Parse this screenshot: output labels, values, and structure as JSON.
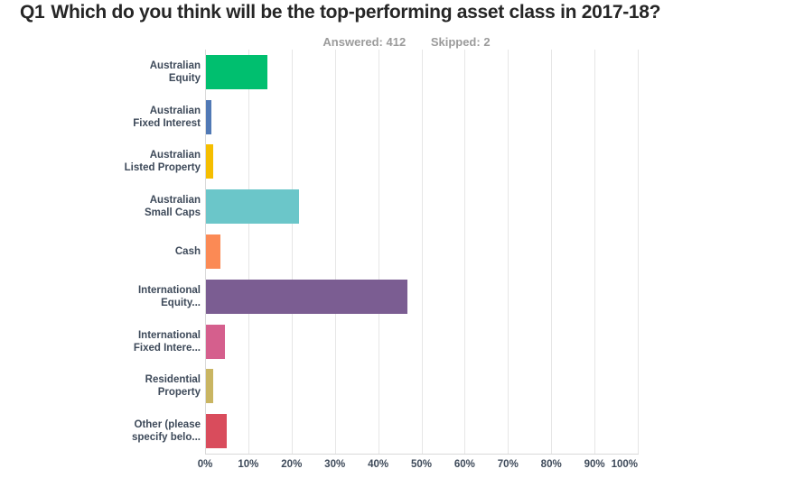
{
  "title": {
    "prefix": "Q1",
    "text": "Which do you think will be the top-performing asset class in 2017-18?"
  },
  "stats": {
    "answered": "Answered: 412",
    "skipped": "Skipped: 2"
  },
  "chart_data": {
    "type": "bar",
    "orientation": "horizontal",
    "title": "Q1 Which do you think will be the top-performing asset class in 2017-18?",
    "categories": [
      "Australian Equity",
      "Australian Fixed Interest",
      "Australian Listed Property",
      "Australian Small Caps",
      "Cash",
      "International Equity...",
      "International Fixed Intere...",
      "Residential Property",
      "Other (please specify belo..."
    ],
    "category_display_lines": [
      [
        "Australian",
        "Equity"
      ],
      [
        "Australian",
        "Fixed Interest"
      ],
      [
        "Australian",
        "Listed Property"
      ],
      [
        "Australian",
        "Small Caps"
      ],
      [
        "Cash"
      ],
      [
        "International",
        "Equity..."
      ],
      [
        "International",
        "Fixed Intere..."
      ],
      [
        "Residential",
        "Property"
      ],
      [
        "Other (please",
        "specify belo..."
      ]
    ],
    "values": [
      14.2,
      1.2,
      1.7,
      21.4,
      3.4,
      46.6,
      4.4,
      1.7,
      4.9
    ],
    "unit": "%",
    "bar_colors": [
      "#00BF6F",
      "#5179B5",
      "#F5BE00",
      "#6BC6C9",
      "#FB8A55",
      "#7B5D92",
      "#D55F8D",
      "#C9B562",
      "#D94C5C"
    ],
    "x_ticks": [
      "0%",
      "10%",
      "20%",
      "30%",
      "40%",
      "50%",
      "60%",
      "70%",
      "80%",
      "90%",
      "100%"
    ],
    "xlim": [
      0,
      100
    ],
    "grid": "vertical",
    "legend": "none",
    "gridline_color": "#e6e6e6",
    "axis_text_color": "#3e4a5a"
  }
}
